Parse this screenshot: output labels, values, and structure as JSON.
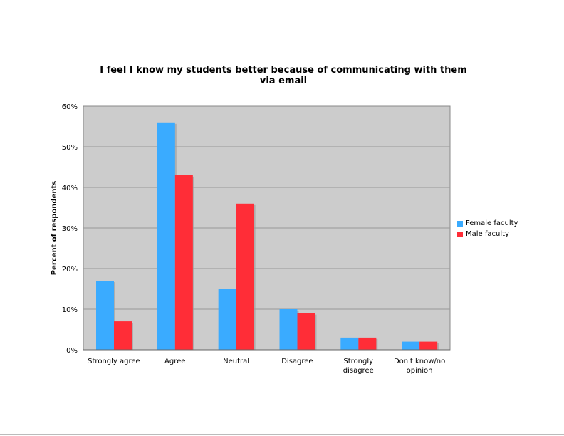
{
  "chart_data": {
    "type": "bar",
    "title": "I feel I know my students better because of communicating with them via email",
    "xlabel": "",
    "ylabel": "Percent of respondents",
    "ylim": [
      0,
      60
    ],
    "yticks": [
      "0%",
      "10%",
      "20%",
      "30%",
      "40%",
      "50%",
      "60%"
    ],
    "grid": true,
    "legend_position": "right",
    "categories": [
      "Strongly agree",
      "Agree",
      "Neutral",
      "Disagree",
      "Strongly disagree",
      "Don't know/no opinion"
    ],
    "category_label_lines": [
      [
        "Strongly agree"
      ],
      [
        "Agree"
      ],
      [
        "Neutral"
      ],
      [
        "Disagree"
      ],
      [
        "Strongly",
        "disagree"
      ],
      [
        "Don't know/no",
        "opinion"
      ]
    ],
    "series": [
      {
        "name": "Female faculty",
        "color": "#3aabff",
        "values": [
          17,
          56,
          15,
          10,
          3,
          2
        ]
      },
      {
        "name": "Male faculty",
        "color": "#ff2d37",
        "values": [
          7,
          43,
          36,
          9,
          3,
          2
        ]
      }
    ],
    "plot_background": "#cccccc"
  }
}
